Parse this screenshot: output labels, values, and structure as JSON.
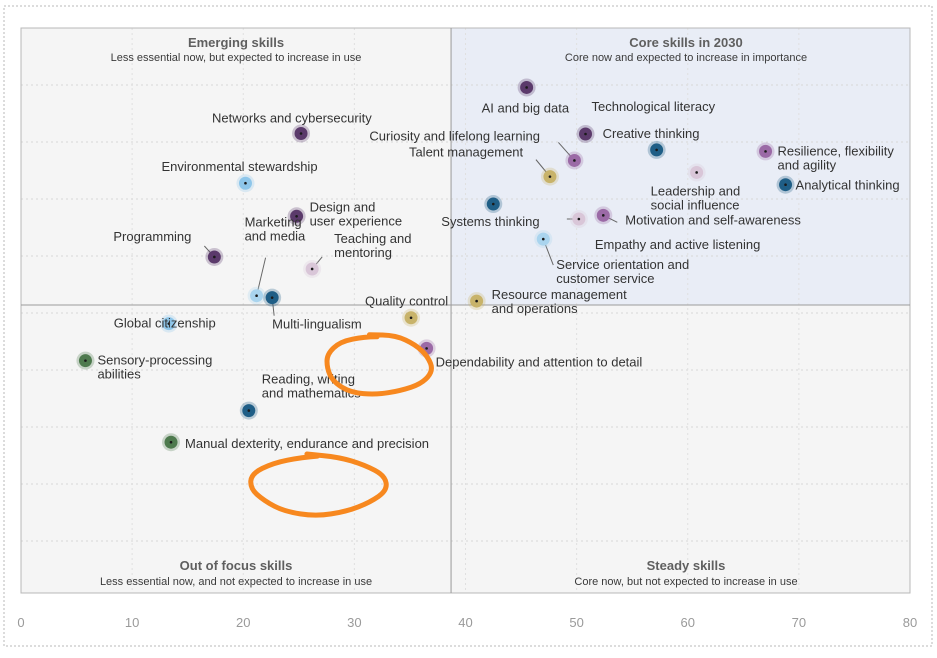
{
  "chart_data": {
    "type": "scatter",
    "xlim": [
      0,
      80
    ],
    "x_ticks": [
      "0",
      "10",
      "20",
      "30",
      "40",
      "50",
      "60",
      "70",
      "80"
    ],
    "grid": true,
    "quadrants": {
      "top_left": {
        "title": "Emerging skills",
        "subtitle": "Less essential now, but expected to increase in use"
      },
      "top_right": {
        "title": "Core skills in 2030",
        "subtitle": "Core now and expected to increase in importance"
      },
      "bottom_left": {
        "title": "Out of focus skills",
        "subtitle": "Less essential now, and not expected to increase in use"
      },
      "bottom_right": {
        "title": "Steady skills",
        "subtitle": "Core now, but not expected to increase in use"
      }
    },
    "points": [
      {
        "label": [
          "AI and big data"
        ],
        "x": 45.5,
        "y": 0.888,
        "color": "#5b3a6b",
        "category": "technological"
      },
      {
        "label": [
          "Technological literacy"
        ],
        "x": 50.8,
        "y": 0.698,
        "color": "#5b3a6b",
        "category": "technological"
      },
      {
        "label": [
          "Creative thinking"
        ],
        "x": 57.2,
        "y": 0.633,
        "color": "#1f5e86",
        "category": "cognitive"
      },
      {
        "label": [
          "Resilience, flexibility",
          "and agility"
        ],
        "x": 67.0,
        "y": 0.627,
        "color": "#9b6aa6",
        "category": "self-efficacy"
      },
      {
        "label": [
          "Curiosity and lifelong learning"
        ],
        "x": 49.8,
        "y": 0.59,
        "color": "#9b6aa6",
        "category": "self-efficacy"
      },
      {
        "label": [
          "Talent management"
        ],
        "x": 47.6,
        "y": 0.524,
        "color": "#c8b36a",
        "category": "management"
      },
      {
        "label": [
          "Leadership and",
          "social influence"
        ],
        "x": 60.8,
        "y": 0.541,
        "color": "#d9c6d8",
        "category": "working with others"
      },
      {
        "label": [
          "Analytical thinking"
        ],
        "x": 68.8,
        "y": 0.491,
        "color": "#1f5e86",
        "category": "cognitive"
      },
      {
        "label": [
          "Systems thinking"
        ],
        "x": 42.5,
        "y": 0.412,
        "color": "#1f5e86",
        "category": "cognitive"
      },
      {
        "label": [
          "Motivation and self-awareness"
        ],
        "x": 52.4,
        "y": 0.366,
        "color": "#9b6aa6",
        "category": "self-efficacy"
      },
      {
        "label": [
          "Empathy and active listening"
        ],
        "x": 50.2,
        "y": 0.351,
        "color": "#d9c6d8",
        "category": "working with others"
      },
      {
        "label": [
          "Service orientation and",
          "customer service"
        ],
        "x": 47.0,
        "y": 0.269,
        "color": "#a9d4ee",
        "category": "engagement skills"
      },
      {
        "label": [
          "Networks and cybersecurity"
        ],
        "x": 25.2,
        "y": 0.7,
        "color": "#5b3a6b",
        "category": "technological"
      },
      {
        "label": [
          "Environmental stewardship"
        ],
        "x": 20.2,
        "y": 0.497,
        "color": "#8ec6ea",
        "category": "ethics"
      },
      {
        "label": [
          "Design and",
          "user experience"
        ],
        "x": 24.8,
        "y": 0.362,
        "color": "#5b3a6b",
        "category": "technological"
      },
      {
        "label": [
          "Programming"
        ],
        "x": 17.4,
        "y": 0.196,
        "color": "#5b3a6b",
        "category": "technological"
      },
      {
        "label": [
          "Marketing",
          "and media"
        ],
        "x": 21.2,
        "y": 0.038,
        "color": "#a9d4ee",
        "category": "engagement skills"
      },
      {
        "label": [
          "Teaching and",
          "mentoring"
        ],
        "x": 26.2,
        "y": 0.147,
        "color": "#d9c6d8",
        "category": "working with others"
      },
      {
        "label": [
          "Global citizenship"
        ],
        "x": 13.3,
        "y": -0.076,
        "color": "#8ec6ea",
        "category": "ethics"
      },
      {
        "label": [
          "Multi-lingualism"
        ],
        "x": 22.6,
        "y": 0.03,
        "color": "#1f5e86",
        "category": "cognitive"
      },
      {
        "label": [
          "Quality control"
        ],
        "x": 35.1,
        "y": -0.052,
        "color": "#c8b36a",
        "category": "management"
      },
      {
        "label": [
          "Resource management",
          "and operations"
        ],
        "x": 41.0,
        "y": 0.016,
        "color": "#c8b36a",
        "category": "management"
      },
      {
        "label": [
          "Sensory-processing",
          "abilities"
        ],
        "x": 5.8,
        "y": -0.227,
        "color": "#4e7a4e",
        "category": "physical abilities"
      },
      {
        "label": [
          "Dependability and attention to detail"
        ],
        "x": 36.5,
        "y": -0.177,
        "color": "#9b6aa6",
        "category": "self-efficacy"
      },
      {
        "label": [
          "Reading, writing",
          "and mathematics"
        ],
        "x": 20.5,
        "y": -0.431,
        "color": "#1f5e86",
        "category": "cognitive"
      },
      {
        "label": [
          "Manual dexterity, endurance and precision"
        ],
        "x": 13.5,
        "y": -0.56,
        "color": "#4e7a4e",
        "category": "physical abilities"
      }
    ],
    "highlighted": [
      "Teaching and mentoring",
      "Reading, writing and mathematics"
    ],
    "highlight_color": "#f7881f"
  }
}
